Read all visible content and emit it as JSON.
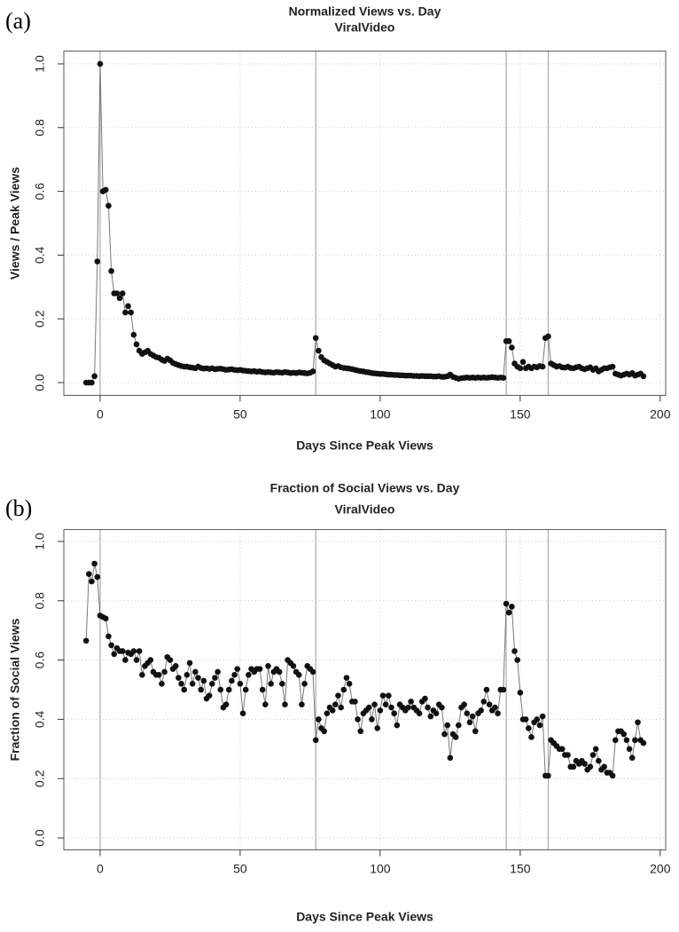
{
  "chart_data": [
    {
      "type": "line",
      "panel_label": "(a)",
      "title": "Normalized Views vs. Day",
      "subtitle": "ViralVideo",
      "xlabel": "Days Since Peak Views",
      "ylabel": "Views / Peak Views",
      "color": "#111111",
      "xlim": [
        -12.96,
        201.96
      ],
      "ylim": [
        -0.04,
        1.04
      ],
      "xticks": [
        0,
        50,
        100,
        150,
        200
      ],
      "yticks": [
        {
          "value": 0,
          "label": "0.0"
        },
        0.2,
        0.4,
        0.6,
        0.8,
        {
          "value": 1,
          "label": "1.0"
        }
      ],
      "vlines": [
        0,
        77,
        145,
        160
      ],
      "grid": true,
      "x": [
        -5,
        -4,
        -3,
        -2,
        -1,
        0,
        1,
        2,
        3,
        4,
        5,
        6,
        7,
        8,
        9,
        10,
        11,
        12,
        13,
        14,
        15,
        16,
        17,
        18,
        19,
        20,
        21,
        22,
        23,
        24,
        25,
        26,
        27,
        28,
        29,
        30,
        31,
        32,
        33,
        34,
        35,
        36,
        37,
        38,
        39,
        40,
        41,
        42,
        43,
        44,
        45,
        46,
        47,
        48,
        49,
        50,
        51,
        52,
        53,
        54,
        55,
        56,
        57,
        58,
        59,
        60,
        61,
        62,
        63,
        64,
        65,
        66,
        67,
        68,
        69,
        70,
        71,
        72,
        73,
        74,
        75,
        76,
        77,
        78,
        79,
        80,
        81,
        82,
        83,
        84,
        85,
        86,
        87,
        88,
        89,
        90,
        91,
        92,
        93,
        94,
        95,
        96,
        97,
        98,
        99,
        100,
        101,
        102,
        103,
        104,
        105,
        106,
        107,
        108,
        109,
        110,
        111,
        112,
        113,
        114,
        115,
        116,
        117,
        118,
        119,
        120,
        121,
        122,
        123,
        124,
        125,
        126,
        127,
        128,
        129,
        130,
        131,
        132,
        133,
        134,
        135,
        136,
        137,
        138,
        139,
        140,
        141,
        142,
        143,
        144,
        145,
        146,
        147,
        148,
        149,
        150,
        151,
        152,
        153,
        154,
        155,
        156,
        157,
        158,
        159,
        160,
        161,
        162,
        163,
        164,
        165,
        166,
        167,
        168,
        169,
        170,
        171,
        172,
        173,
        174,
        175,
        176,
        177,
        178,
        179,
        180,
        181,
        182,
        183,
        184,
        185,
        186,
        187,
        188,
        189,
        190,
        191,
        192,
        193,
        194
      ],
      "values": [
        0,
        0,
        0,
        0.02,
        0.38,
        1,
        0.6,
        0.605,
        0.555,
        0.35,
        0.28,
        0.28,
        0.265,
        0.28,
        0.22,
        0.24,
        0.22,
        0.15,
        0.12,
        0.1,
        0.09,
        0.095,
        0.1,
        0.09,
        0.085,
        0.08,
        0.078,
        0.072,
        0.068,
        0.075,
        0.07,
        0.062,
        0.058,
        0.055,
        0.052,
        0.05,
        0.05,
        0.048,
        0.047,
        0.045,
        0.05,
        0.046,
        0.044,
        0.045,
        0.043,
        0.045,
        0.042,
        0.043,
        0.044,
        0.042,
        0.04,
        0.041,
        0.042,
        0.04,
        0.039,
        0.04,
        0.038,
        0.037,
        0.036,
        0.035,
        0.036,
        0.034,
        0.035,
        0.033,
        0.032,
        0.033,
        0.032,
        0.031,
        0.033,
        0.032,
        0.031,
        0.033,
        0.032,
        0.03,
        0.031,
        0.03,
        0.032,
        0.031,
        0.03,
        0.029,
        0.031,
        0.035,
        0.14,
        0.1,
        0.08,
        0.07,
        0.065,
        0.06,
        0.055,
        0.05,
        0.052,
        0.048,
        0.046,
        0.045,
        0.044,
        0.042,
        0.04,
        0.038,
        0.036,
        0.035,
        0.033,
        0.032,
        0.03,
        0.029,
        0.028,
        0.027,
        0.027,
        0.026,
        0.025,
        0.025,
        0.024,
        0.024,
        0.023,
        0.023,
        0.022,
        0.022,
        0.022,
        0.021,
        0.021,
        0.02,
        0.021,
        0.02,
        0.02,
        0.02,
        0.019,
        0.019,
        0.02,
        0.018,
        0.018,
        0.02,
        0.025,
        0.018,
        0.015,
        0.012,
        0.014,
        0.015,
        0.016,
        0.015,
        0.016,
        0.015,
        0.016,
        0.015,
        0.016,
        0.015,
        0.016,
        0.017,
        0.016,
        0.015,
        0.016,
        0.015,
        0.13,
        0.13,
        0.11,
        0.06,
        0.05,
        0.045,
        0.065,
        0.045,
        0.05,
        0.045,
        0.05,
        0.048,
        0.052,
        0.05,
        0.14,
        0.145,
        0.06,
        0.055,
        0.05,
        0.052,
        0.048,
        0.047,
        0.05,
        0.046,
        0.045,
        0.048,
        0.05,
        0.045,
        0.042,
        0.045,
        0.048,
        0.04,
        0.045,
        0.035,
        0.04,
        0.045,
        0.045,
        0.048,
        0.05,
        0.028,
        0.025,
        0.022,
        0.025,
        0.028,
        0.025,
        0.03,
        0.022,
        0.025,
        0.028,
        0.02
      ]
    },
    {
      "type": "line",
      "panel_label": "(b)",
      "title": "Fraction of Social Views vs. Day",
      "subtitle": "ViralVideo",
      "xlabel": "Days Since Peak Views",
      "ylabel": "Fraction of Social Views",
      "color": "#111111",
      "xlim": [
        -12.96,
        201.96
      ],
      "ylim": [
        -0.04,
        1.04
      ],
      "xticks": [
        0,
        50,
        100,
        150,
        200
      ],
      "yticks": [
        {
          "value": 0,
          "label": "0.0"
        },
        0.2,
        0.4,
        0.6,
        0.8,
        {
          "value": 1,
          "label": "1.0"
        }
      ],
      "vlines": [
        0,
        77,
        145,
        160
      ],
      "grid": true,
      "x": [
        -5,
        -4,
        -3,
        -2,
        -1,
        0,
        1,
        2,
        3,
        4,
        5,
        6,
        7,
        8,
        9,
        10,
        11,
        12,
        13,
        14,
        15,
        16,
        17,
        18,
        19,
        20,
        21,
        22,
        23,
        24,
        25,
        26,
        27,
        28,
        29,
        30,
        31,
        32,
        33,
        34,
        35,
        36,
        37,
        38,
        39,
        40,
        41,
        42,
        43,
        44,
        45,
        46,
        47,
        48,
        49,
        50,
        51,
        52,
        53,
        54,
        55,
        56,
        57,
        58,
        59,
        60,
        61,
        62,
        63,
        64,
        65,
        66,
        67,
        68,
        69,
        70,
        71,
        72,
        73,
        74,
        75,
        76,
        77,
        78,
        79,
        80,
        81,
        82,
        83,
        84,
        85,
        86,
        87,
        88,
        89,
        90,
        91,
        92,
        93,
        94,
        95,
        96,
        97,
        98,
        99,
        100,
        101,
        102,
        103,
        104,
        105,
        106,
        107,
        108,
        109,
        110,
        111,
        112,
        113,
        114,
        115,
        116,
        117,
        118,
        119,
        120,
        121,
        122,
        123,
        124,
        125,
        126,
        127,
        128,
        129,
        130,
        131,
        132,
        133,
        134,
        135,
        136,
        137,
        138,
        139,
        140,
        141,
        142,
        143,
        144,
        145,
        146,
        147,
        148,
        149,
        150,
        151,
        152,
        153,
        154,
        155,
        156,
        157,
        158,
        159,
        160,
        161,
        162,
        163,
        164,
        165,
        166,
        167,
        168,
        169,
        170,
        171,
        172,
        173,
        174,
        175,
        176,
        177,
        178,
        179,
        180,
        181,
        182,
        183,
        184,
        185,
        186,
        187,
        188,
        189,
        190,
        191,
        192,
        193,
        194
      ],
      "values": [
        0.665,
        0.89,
        0.865,
        0.925,
        0.88,
        0.75,
        0.745,
        0.74,
        0.68,
        0.65,
        0.62,
        0.64,
        0.63,
        0.63,
        0.6,
        0.625,
        0.62,
        0.63,
        0.6,
        0.63,
        0.55,
        0.58,
        0.59,
        0.6,
        0.56,
        0.55,
        0.55,
        0.52,
        0.56,
        0.61,
        0.6,
        0.57,
        0.58,
        0.54,
        0.52,
        0.5,
        0.55,
        0.59,
        0.52,
        0.56,
        0.54,
        0.5,
        0.53,
        0.47,
        0.48,
        0.52,
        0.54,
        0.56,
        0.5,
        0.44,
        0.45,
        0.5,
        0.53,
        0.55,
        0.57,
        0.52,
        0.42,
        0.5,
        0.55,
        0.57,
        0.56,
        0.57,
        0.57,
        0.5,
        0.45,
        0.58,
        0.52,
        0.56,
        0.57,
        0.56,
        0.52,
        0.45,
        0.6,
        0.59,
        0.58,
        0.56,
        0.55,
        0.45,
        0.52,
        0.58,
        0.57,
        0.56,
        0.33,
        0.4,
        0.37,
        0.36,
        0.42,
        0.44,
        0.43,
        0.45,
        0.48,
        0.44,
        0.5,
        0.54,
        0.52,
        0.46,
        0.46,
        0.4,
        0.36,
        0.42,
        0.43,
        0.44,
        0.4,
        0.45,
        0.37,
        0.43,
        0.48,
        0.45,
        0.48,
        0.44,
        0.42,
        0.38,
        0.45,
        0.44,
        0.43,
        0.44,
        0.46,
        0.44,
        0.43,
        0.42,
        0.46,
        0.47,
        0.44,
        0.41,
        0.43,
        0.42,
        0.45,
        0.44,
        0.35,
        0.38,
        0.27,
        0.35,
        0.34,
        0.38,
        0.44,
        0.45,
        0.42,
        0.39,
        0.41,
        0.36,
        0.42,
        0.43,
        0.46,
        0.5,
        0.45,
        0.43,
        0.44,
        0.42,
        0.5,
        0.5,
        0.79,
        0.76,
        0.78,
        0.63,
        0.6,
        0.49,
        0.4,
        0.4,
        0.37,
        0.34,
        0.39,
        0.4,
        0.38,
        0.41,
        0.21,
        0.21,
        0.33,
        0.32,
        0.31,
        0.3,
        0.3,
        0.28,
        0.28,
        0.24,
        0.24,
        0.26,
        0.25,
        0.26,
        0.25,
        0.23,
        0.24,
        0.28,
        0.3,
        0.26,
        0.23,
        0.24,
        0.22,
        0.22,
        0.21,
        0.33,
        0.36,
        0.36,
        0.35,
        0.33,
        0.3,
        0.27,
        0.33,
        0.39,
        0.33,
        0.32
      ]
    }
  ]
}
